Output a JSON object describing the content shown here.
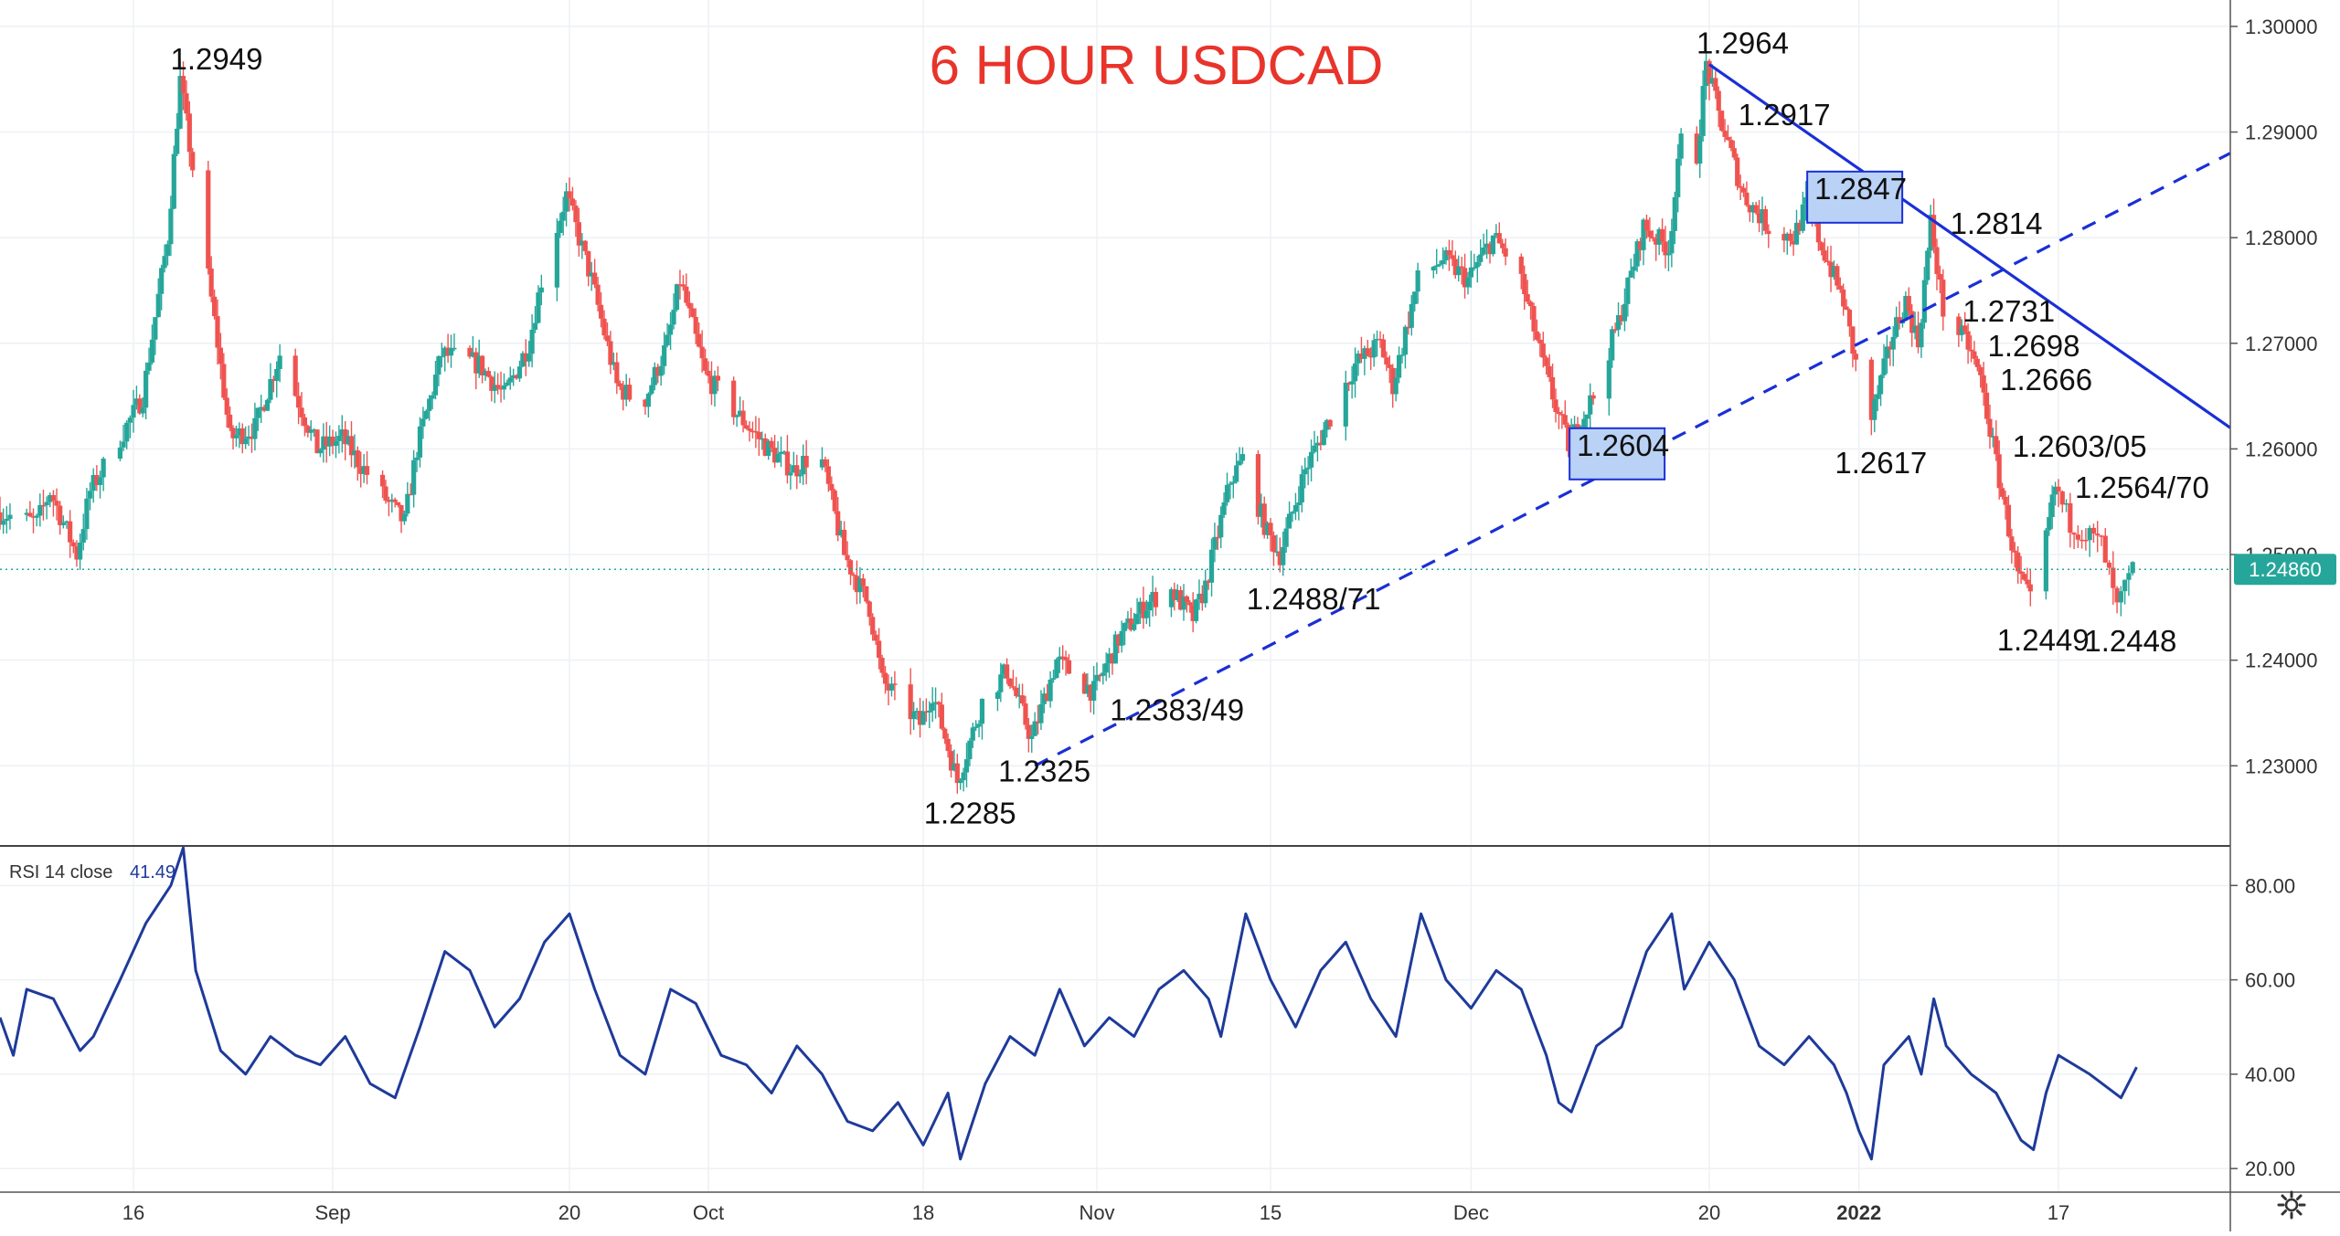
{
  "chart_data": {
    "type": "candlestick",
    "title": "6 HOUR USDCAD",
    "symbol": "USDCAD",
    "timeframe": "6 HOUR",
    "colors": {
      "title": "#e8342b",
      "up": "#26a69a",
      "down": "#ef5350",
      "trendline": "#1a2fd6",
      "rsi": "#1e3a9a",
      "axis_text": "#333333",
      "grid": "#eef0f4",
      "last_price_bg": "#26a69a",
      "box_fill": "#b9d2f5",
      "box_stroke": "#1a2fd6"
    },
    "x_axis": {
      "ticks": [
        {
          "label": "16",
          "date": "2021-08-16"
        },
        {
          "label": "Sep",
          "date": "2021-09-01"
        },
        {
          "label": "20",
          "date": "2021-09-20"
        },
        {
          "label": "Oct",
          "date": "2021-10-01"
        },
        {
          "label": "18",
          "date": "2021-10-18"
        },
        {
          "label": "Nov",
          "date": "2021-11-01"
        },
        {
          "label": "15",
          "date": "2021-11-15"
        },
        {
          "label": "Dec",
          "date": "2021-12-01"
        },
        {
          "label": "20",
          "date": "2021-12-20"
        },
        {
          "label": "2022",
          "date": "2022-01-01",
          "bold": true
        },
        {
          "label": "17",
          "date": "2022-01-17"
        }
      ],
      "range": [
        "2021-08-06",
        "2022-01-28"
      ]
    },
    "price_axis": {
      "ylim": [
        1.2225,
        1.3025
      ],
      "ticks": [
        "1.23000",
        "1.24000",
        "1.25000",
        "1.26000",
        "1.27000",
        "1.28000",
        "1.29000",
        "1.30000"
      ]
    },
    "last_price": {
      "label": "1.24860",
      "value": 1.2486
    },
    "pivots": [
      {
        "date": "2021-08-06",
        "price": 1.254
      },
      {
        "date": "2021-08-09",
        "price": 1.253
      },
      {
        "date": "2021-08-10",
        "price": 1.256
      },
      {
        "date": "2021-08-12",
        "price": 1.25
      },
      {
        "date": "2021-08-13",
        "price": 1.256
      },
      {
        "date": "2021-08-17",
        "price": 1.265
      },
      {
        "date": "2021-08-19",
        "price": 1.28
      },
      {
        "date": "2021-08-20",
        "price": 1.2949
      },
      {
        "date": "2021-08-23",
        "price": 1.27
      },
      {
        "date": "2021-08-24",
        "price": 1.261
      },
      {
        "date": "2021-08-26",
        "price": 1.262
      },
      {
        "date": "2021-08-28",
        "price": 1.269
      },
      {
        "date": "2021-08-31",
        "price": 1.26
      },
      {
        "date": "2021-09-02",
        "price": 1.261
      },
      {
        "date": "2021-09-05",
        "price": 1.256
      },
      {
        "date": "2021-09-07",
        "price": 1.253
      },
      {
        "date": "2021-09-08",
        "price": 1.26
      },
      {
        "date": "2021-09-10",
        "price": 1.269
      },
      {
        "date": "2021-09-13",
        "price": 1.268
      },
      {
        "date": "2021-09-15",
        "price": 1.265
      },
      {
        "date": "2021-09-17",
        "price": 1.27
      },
      {
        "date": "2021-09-18",
        "price": 1.276
      },
      {
        "date": "2021-09-20",
        "price": 1.284
      },
      {
        "date": "2021-09-22",
        "price": 1.276
      },
      {
        "date": "2021-09-24",
        "price": 1.266
      },
      {
        "date": "2021-09-26",
        "price": 1.264
      },
      {
        "date": "2021-09-28",
        "price": 1.27
      },
      {
        "date": "2021-09-29",
        "price": 1.276
      },
      {
        "date": "2021-10-01",
        "price": 1.267
      },
      {
        "date": "2021-10-03",
        "price": 1.264
      },
      {
        "date": "2021-10-06",
        "price": 1.26
      },
      {
        "date": "2021-10-08",
        "price": 1.258
      },
      {
        "date": "2021-10-10",
        "price": 1.26
      },
      {
        "date": "2021-10-12",
        "price": 1.25
      },
      {
        "date": "2021-10-14",
        "price": 1.245
      },
      {
        "date": "2021-10-15",
        "price": 1.238
      },
      {
        "date": "2021-10-18",
        "price": 1.234
      },
      {
        "date": "2021-10-19",
        "price": 1.237
      },
      {
        "date": "2021-10-21",
        "price": 1.2285
      },
      {
        "date": "2021-10-23",
        "price": 1.236
      },
      {
        "date": "2021-10-25",
        "price": 1.239
      },
      {
        "date": "2021-10-27",
        "price": 1.2325
      },
      {
        "date": "2021-10-29",
        "price": 1.24
      },
      {
        "date": "2021-11-01",
        "price": 1.237
      },
      {
        "date": "2021-11-03",
        "price": 1.242
      },
      {
        "date": "2021-11-05",
        "price": 1.245
      },
      {
        "date": "2021-11-07",
        "price": 1.247
      },
      {
        "date": "2021-11-09",
        "price": 1.244
      },
      {
        "date": "2021-11-10",
        "price": 1.247
      },
      {
        "date": "2021-11-12",
        "price": 1.257
      },
      {
        "date": "2021-11-13",
        "price": 1.259
      },
      {
        "date": "2021-11-15",
        "price": 1.252
      },
      {
        "date": "2021-11-16",
        "price": 1.25
      },
      {
        "date": "2021-11-18",
        "price": 1.258
      },
      {
        "date": "2021-11-20",
        "price": 1.263
      },
      {
        "date": "2021-11-22",
        "price": 1.268
      },
      {
        "date": "2021-11-24",
        "price": 1.27
      },
      {
        "date": "2021-11-25",
        "price": 1.266
      },
      {
        "date": "2021-11-27",
        "price": 1.276
      },
      {
        "date": "2021-11-29",
        "price": 1.278
      },
      {
        "date": "2021-12-01",
        "price": 1.276
      },
      {
        "date": "2021-12-03",
        "price": 1.28
      },
      {
        "date": "2021-12-05",
        "price": 1.277
      },
      {
        "date": "2021-12-07",
        "price": 1.268
      },
      {
        "date": "2021-12-08",
        "price": 1.264
      },
      {
        "date": "2021-12-09",
        "price": 1.2604
      },
      {
        "date": "2021-12-11",
        "price": 1.265
      },
      {
        "date": "2021-12-13",
        "price": 1.272
      },
      {
        "date": "2021-12-15",
        "price": 1.281
      },
      {
        "date": "2021-12-17",
        "price": 1.279
      },
      {
        "date": "2021-12-18",
        "price": 1.289
      },
      {
        "date": "2021-12-19",
        "price": 1.285
      },
      {
        "date": "2021-12-20",
        "price": 1.2964
      },
      {
        "date": "2021-12-21",
        "price": 1.2917
      },
      {
        "date": "2021-12-23",
        "price": 1.284
      },
      {
        "date": "2021-12-25",
        "price": 1.281
      },
      {
        "date": "2021-12-27",
        "price": 1.28
      },
      {
        "date": "2021-12-28",
        "price": 1.283
      },
      {
        "date": "2021-12-29",
        "price": 1.28
      },
      {
        "date": "2021-12-31",
        "price": 1.274
      },
      {
        "date": "2022-01-01",
        "price": 1.268
      },
      {
        "date": "2022-01-02",
        "price": 1.2617
      },
      {
        "date": "2022-01-04",
        "price": 1.271
      },
      {
        "date": "2022-01-05",
        "price": 1.274
      },
      {
        "date": "2022-01-06",
        "price": 1.27
      },
      {
        "date": "2022-01-07",
        "price": 1.2814
      },
      {
        "date": "2022-01-08",
        "price": 1.2731
      },
      {
        "date": "2022-01-10",
        "price": 1.2698
      },
      {
        "date": "2022-01-11",
        "price": 1.2666
      },
      {
        "date": "2022-01-12",
        "price": 1.2603
      },
      {
        "date": "2022-01-13",
        "price": 1.254
      },
      {
        "date": "2022-01-14",
        "price": 1.248
      },
      {
        "date": "2022-01-15",
        "price": 1.2455
      },
      {
        "date": "2022-01-16",
        "price": 1.25
      },
      {
        "date": "2022-01-17",
        "price": 1.2564
      },
      {
        "date": "2022-01-18",
        "price": 1.253
      },
      {
        "date": "2022-01-20",
        "price": 1.251
      },
      {
        "date": "2022-01-21",
        "price": 1.2448
      },
      {
        "date": "2022-01-22",
        "price": 1.2486
      }
    ],
    "annotations": [
      {
        "text": "1.2949",
        "date": "2021-08-20",
        "price": 1.2949,
        "anchor": "above"
      },
      {
        "text": "1.2964",
        "date": "2021-12-20",
        "price": 1.2964,
        "anchor": "above"
      },
      {
        "text": "1.2917",
        "date": "2021-12-21",
        "price": 1.2917,
        "anchor": "right"
      },
      {
        "text": "1.2847",
        "date": "2021-12-28",
        "price": 1.2847,
        "anchor": "box"
      },
      {
        "text": "1.2814",
        "date": "2022-01-07",
        "price": 1.2814,
        "anchor": "right"
      },
      {
        "text": "1.2731",
        "date": "2022-01-08",
        "price": 1.2731,
        "anchor": "right"
      },
      {
        "text": "1.2698",
        "date": "2022-01-10",
        "price": 1.2698,
        "anchor": "right"
      },
      {
        "text": "1.2666",
        "date": "2022-01-11",
        "price": 1.2666,
        "anchor": "right"
      },
      {
        "text": "1.2617",
        "date": "2022-01-02",
        "price": 1.2617,
        "anchor": "below"
      },
      {
        "text": "1.2603/05",
        "date": "2022-01-12",
        "price": 1.2603,
        "anchor": "right"
      },
      {
        "text": "1.2564/70",
        "date": "2022-01-17",
        "price": 1.2564,
        "anchor": "right"
      },
      {
        "text": "1.2604",
        "date": "2021-12-09",
        "price": 1.2604,
        "anchor": "box"
      },
      {
        "text": "1.2488/71",
        "date": "2021-11-16",
        "price": 1.2488,
        "anchor": "below"
      },
      {
        "text": "1.2383/49",
        "date": "2021-11-05",
        "price": 1.2383,
        "anchor": "below"
      },
      {
        "text": "1.2325",
        "date": "2021-10-27",
        "price": 1.2325,
        "anchor": "below"
      },
      {
        "text": "1.2285",
        "date": "2021-10-21",
        "price": 1.2285,
        "anchor": "below"
      },
      {
        "text": "1.2449",
        "date": "2022-01-15",
        "price": 1.2449,
        "anchor": "below"
      },
      {
        "text": "1.2448",
        "date": "2022-01-21",
        "price": 1.2448,
        "anchor": "below"
      }
    ],
    "trendlines": [
      {
        "style": "solid",
        "from": {
          "date": "2021-12-20",
          "price": 1.2964
        },
        "to": {
          "date": "2022-01-28",
          "price": 1.262
        }
      },
      {
        "style": "dashed",
        "from": {
          "date": "2021-10-27",
          "price": 1.23
        },
        "to": {
          "date": "2022-01-28",
          "price": 1.288
        }
      }
    ],
    "rsi": {
      "label": "RSI 14 close",
      "value_label": "41.49",
      "value": 41.49,
      "ylim": [
        15,
        88
      ],
      "ticks": [
        "20.00",
        "40.00",
        "60.00",
        "80.00"
      ],
      "points": [
        {
          "date": "2021-08-06",
          "value": 52
        },
        {
          "date": "2021-08-07",
          "value": 44
        },
        {
          "date": "2021-08-08",
          "value": 58
        },
        {
          "date": "2021-08-10",
          "value": 56
        },
        {
          "date": "2021-08-12",
          "value": 45
        },
        {
          "date": "2021-08-13",
          "value": 48
        },
        {
          "date": "2021-08-15",
          "value": 60
        },
        {
          "date": "2021-08-17",
          "value": 72
        },
        {
          "date": "2021-08-19",
          "value": 80
        },
        {
          "date": "2021-08-20",
          "value": 88
        },
        {
          "date": "2021-08-21",
          "value": 62
        },
        {
          "date": "2021-08-23",
          "value": 45
        },
        {
          "date": "2021-08-25",
          "value": 40
        },
        {
          "date": "2021-08-27",
          "value": 48
        },
        {
          "date": "2021-08-29",
          "value": 44
        },
        {
          "date": "2021-08-31",
          "value": 42
        },
        {
          "date": "2021-09-02",
          "value": 48
        },
        {
          "date": "2021-09-04",
          "value": 38
        },
        {
          "date": "2021-09-06",
          "value": 35
        },
        {
          "date": "2021-09-08",
          "value": 50
        },
        {
          "date": "2021-09-10",
          "value": 66
        },
        {
          "date": "2021-09-12",
          "value": 62
        },
        {
          "date": "2021-09-14",
          "value": 50
        },
        {
          "date": "2021-09-16",
          "value": 56
        },
        {
          "date": "2021-09-18",
          "value": 68
        },
        {
          "date": "2021-09-20",
          "value": 74
        },
        {
          "date": "2021-09-22",
          "value": 58
        },
        {
          "date": "2021-09-24",
          "value": 44
        },
        {
          "date": "2021-09-26",
          "value": 40
        },
        {
          "date": "2021-09-28",
          "value": 58
        },
        {
          "date": "2021-09-30",
          "value": 55
        },
        {
          "date": "2021-10-02",
          "value": 44
        },
        {
          "date": "2021-10-04",
          "value": 42
        },
        {
          "date": "2021-10-06",
          "value": 36
        },
        {
          "date": "2021-10-08",
          "value": 46
        },
        {
          "date": "2021-10-10",
          "value": 40
        },
        {
          "date": "2021-10-12",
          "value": 30
        },
        {
          "date": "2021-10-14",
          "value": 28
        },
        {
          "date": "2021-10-16",
          "value": 34
        },
        {
          "date": "2021-10-18",
          "value": 25
        },
        {
          "date": "2021-10-20",
          "value": 36
        },
        {
          "date": "2021-10-21",
          "value": 22
        },
        {
          "date": "2021-10-23",
          "value": 38
        },
        {
          "date": "2021-10-25",
          "value": 48
        },
        {
          "date": "2021-10-27",
          "value": 44
        },
        {
          "date": "2021-10-29",
          "value": 58
        },
        {
          "date": "2021-10-31",
          "value": 46
        },
        {
          "date": "2021-11-02",
          "value": 52
        },
        {
          "date": "2021-11-04",
          "value": 48
        },
        {
          "date": "2021-11-06",
          "value": 58
        },
        {
          "date": "2021-11-08",
          "value": 62
        },
        {
          "date": "2021-11-10",
          "value": 56
        },
        {
          "date": "2021-11-11",
          "value": 48
        },
        {
          "date": "2021-11-13",
          "value": 74
        },
        {
          "date": "2021-11-15",
          "value": 60
        },
        {
          "date": "2021-11-17",
          "value": 50
        },
        {
          "date": "2021-11-19",
          "value": 62
        },
        {
          "date": "2021-11-21",
          "value": 68
        },
        {
          "date": "2021-11-23",
          "value": 56
        },
        {
          "date": "2021-11-25",
          "value": 48
        },
        {
          "date": "2021-11-27",
          "value": 74
        },
        {
          "date": "2021-11-29",
          "value": 60
        },
        {
          "date": "2021-12-01",
          "value": 54
        },
        {
          "date": "2021-12-03",
          "value": 62
        },
        {
          "date": "2021-12-05",
          "value": 58
        },
        {
          "date": "2021-12-07",
          "value": 44
        },
        {
          "date": "2021-12-08",
          "value": 34
        },
        {
          "date": "2021-12-09",
          "value": 32
        },
        {
          "date": "2021-12-11",
          "value": 46
        },
        {
          "date": "2021-12-13",
          "value": 50
        },
        {
          "date": "2021-12-15",
          "value": 66
        },
        {
          "date": "2021-12-17",
          "value": 74
        },
        {
          "date": "2021-12-18",
          "value": 58
        },
        {
          "date": "2021-12-20",
          "value": 68
        },
        {
          "date": "2021-12-22",
          "value": 60
        },
        {
          "date": "2021-12-24",
          "value": 46
        },
        {
          "date": "2021-12-26",
          "value": 42
        },
        {
          "date": "2021-12-28",
          "value": 48
        },
        {
          "date": "2021-12-30",
          "value": 42
        },
        {
          "date": "2021-12-31",
          "value": 36
        },
        {
          "date": "2022-01-01",
          "value": 28
        },
        {
          "date": "2022-01-02",
          "value": 22
        },
        {
          "date": "2022-01-03",
          "value": 42
        },
        {
          "date": "2022-01-05",
          "value": 48
        },
        {
          "date": "2022-01-06",
          "value": 40
        },
        {
          "date": "2022-01-07",
          "value": 56
        },
        {
          "date": "2022-01-08",
          "value": 46
        },
        {
          "date": "2022-01-10",
          "value": 40
        },
        {
          "date": "2022-01-12",
          "value": 36
        },
        {
          "date": "2022-01-14",
          "value": 26
        },
        {
          "date": "2022-01-15",
          "value": 24
        },
        {
          "date": "2022-01-16",
          "value": 36
        },
        {
          "date": "2022-01-17",
          "value": 44
        },
        {
          "date": "2022-01-19",
          "value": 40
        },
        {
          "date": "2022-01-21",
          "value": 35
        },
        {
          "date": "2022-01-22",
          "value": 41.49
        }
      ]
    }
  },
  "settings_icon": "gear-icon"
}
